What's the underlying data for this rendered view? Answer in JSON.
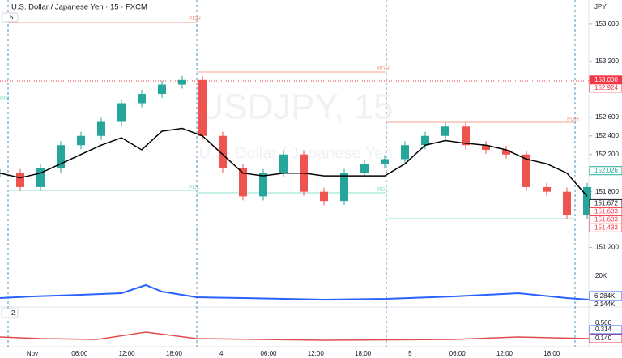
{
  "header": {
    "title": "U.S. Dollar / Japanese Yen · 15 · FXCM",
    "indicator_1": "5",
    "indicator_2": "2",
    "currency": "JPY"
  },
  "watermark": {
    "symbol": "USDJPY, 15",
    "name": "U.S. Dollar / Japanese Yen"
  },
  "levels": [
    "PDH",
    "PDH",
    "PDH",
    "PDL",
    "PDL",
    "PDL"
  ],
  "chart": {
    "type": "candlestick",
    "ylim": [
      150.57,
      153.86
    ],
    "yticks": [
      {
        "value": 153.6,
        "label": "153.600"
      },
      {
        "value": 153.2,
        "label": "153.200"
      },
      {
        "value": 152.6,
        "label": "152.600"
      },
      {
        "value": 152.4,
        "label": "152.400"
      },
      {
        "value": 152.2,
        "label": "152.200"
      },
      {
        "value": 151.8,
        "label": "151.800"
      },
      {
        "value": 151.2,
        "label": "151.200"
      }
    ],
    "closes": [
      152.0,
      151.85,
      152.05,
      152.3,
      152.4,
      152.55,
      152.75,
      152.85,
      152.95,
      153.0,
      152.4,
      152.05,
      151.75,
      152.0,
      152.2,
      151.8,
      151.7,
      152.0,
      152.1,
      152.15,
      152.3,
      152.4,
      152.5,
      152.3,
      152.25,
      152.2,
      151.85,
      151.8,
      151.55,
      151.85
    ],
    "vwap": [
      152.0,
      151.95,
      152.0,
      152.1,
      152.2,
      152.3,
      152.38,
      152.25,
      152.45,
      152.48,
      152.4,
      152.2,
      152.0,
      151.97,
      152.0,
      152.0,
      151.97,
      151.97,
      151.97,
      151.97,
      152.1,
      152.3,
      152.35,
      152.32,
      152.3,
      152.25,
      152.15,
      152.1,
      152.0,
      151.75
    ],
    "up_color": "#26a69a",
    "down_color": "#ef5350",
    "price_tags": [
      {
        "value": 153.0,
        "label": "153.000",
        "color": "#f23645",
        "filled": true
      },
      {
        "value": 152.924,
        "label": "152.924",
        "color": "#f23645",
        "filled": false
      },
      {
        "value": 152.026,
        "label": "152.026",
        "color": "#22ab94",
        "filled": false
      },
      {
        "value": 151.672,
        "label": "151.672",
        "color": "#131722",
        "filled": false
      },
      {
        "value": 151.603,
        "label": "151.603",
        "color": "#f23645",
        "filled": false
      },
      {
        "value": 151.603,
        "label": "151.603",
        "color": "#f23645",
        "filled": false
      },
      {
        "value": 151.433,
        "label": "151.433",
        "color": "#f23645",
        "filled": false
      }
    ]
  },
  "volume": {
    "tick": "20K",
    "tag": "6.284K",
    "tag2": "2.144K"
  },
  "oscillator": {
    "tick": "0.500",
    "tag_1": "0.314",
    "tag_2": "0.140"
  },
  "time_labels": [
    "Nov",
    "06:00",
    "12:00",
    "18:00",
    "4",
    "06:00",
    "12:00",
    "18:00",
    "5",
    "06:00",
    "12:00",
    "18:00"
  ]
}
